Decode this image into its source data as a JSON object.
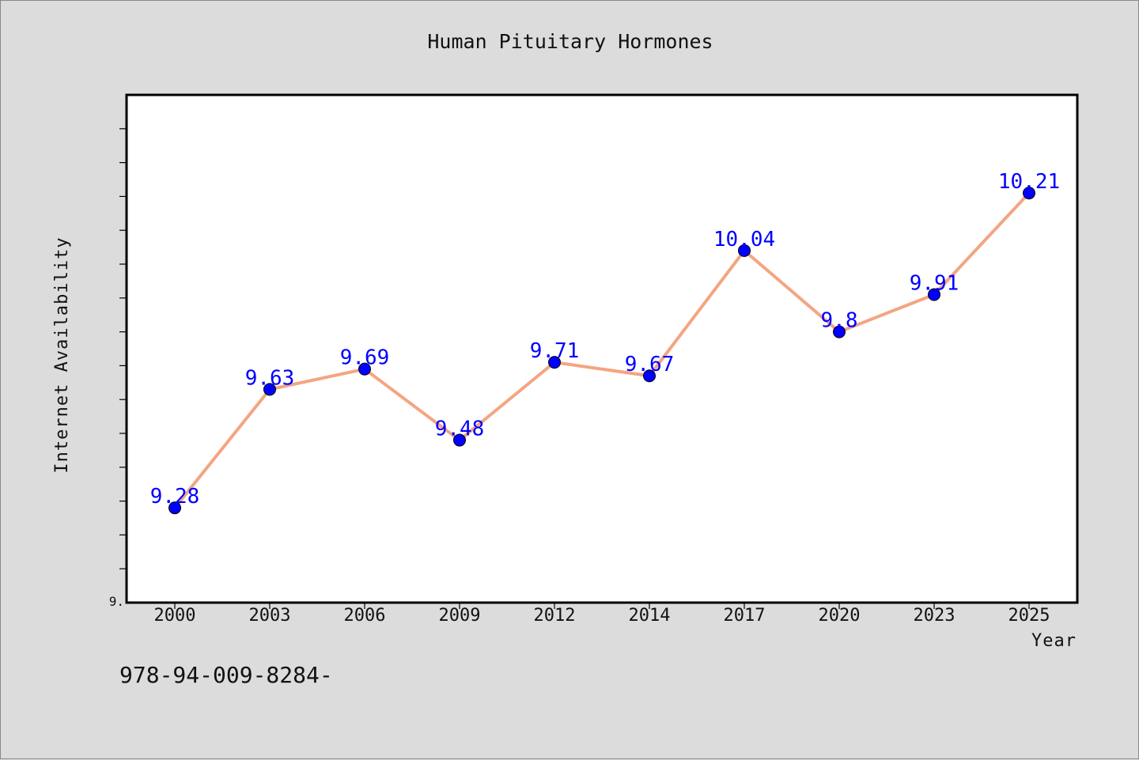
{
  "chart_data": {
    "type": "line",
    "title": "Human Pituitary Hormones",
    "xlabel": "Year",
    "ylabel": "Internet Availability",
    "categories": [
      "2000",
      "2003",
      "2006",
      "2009",
      "2012",
      "2014",
      "2017",
      "2020",
      "2023",
      "2025"
    ],
    "series": [
      {
        "values": [
          9.28,
          9.63,
          9.69,
          9.48,
          9.71,
          9.67,
          10.04,
          9.8,
          9.91,
          10.21
        ]
      }
    ],
    "data_labels": [
      "9.28",
      "9.63",
      "9.69",
      "9.48",
      "9.71",
      "9.67",
      "10.04",
      "9.8",
      "9.91",
      "10.21"
    ],
    "ylim": [
      9.0,
      10.5
    ],
    "yticks": [
      9.0,
      9.1,
      9.2,
      9.3,
      9.4,
      9.5,
      9.6,
      9.7,
      9.8,
      9.9,
      10.0,
      10.1,
      10.2,
      10.3,
      10.4
    ],
    "ytick_labels_visible": [
      "9."
    ],
    "grid": false,
    "legend": "none",
    "colors": {
      "line": "#f4a582",
      "marker": "#0000ff",
      "data_label": "#0000ff",
      "background": "#dcdcdc",
      "plot_area": "#ffffff"
    }
  },
  "footnote": "978-94-009-8284-"
}
